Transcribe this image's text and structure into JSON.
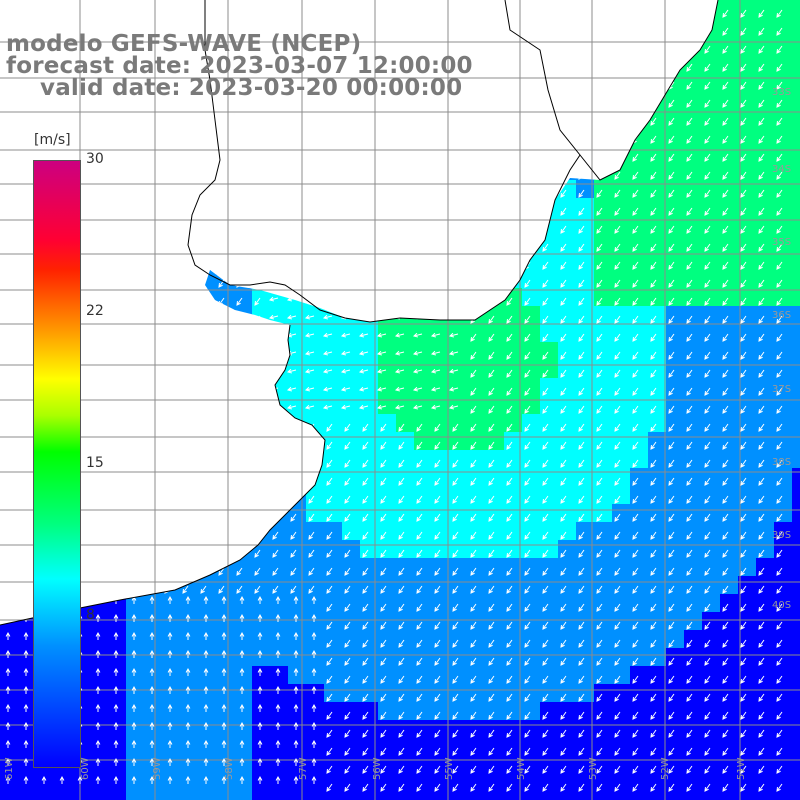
{
  "title": {
    "line1": "modelo GEFS-WAVE (NCEP)",
    "line2": "forecast date: 2023-03-07 12:00:00",
    "line3": "valid date: 2023-03-20 00:00:00"
  },
  "colorbar": {
    "unit": "[m/s]",
    "ticks": [
      "30",
      "22",
      "15",
      "8"
    ],
    "min": 0,
    "max": 30,
    "colors": [
      "#0000ff",
      "#0090ff",
      "#00ffff",
      "#00ff80",
      "#00ff00",
      "#aaff00",
      "#ffff00",
      "#ff9900",
      "#ff2200",
      "#cc0080"
    ]
  },
  "map": {
    "land_color": "#ffffff",
    "coast_color": "#000000",
    "grid_color": "#8c8c8c",
    "arrow_color": "#ffffff",
    "lat_labels": [
      "33S",
      "34S",
      "35S",
      "36S",
      "37S",
      "38S",
      "39S",
      "40S"
    ],
    "lon_labels": [
      "61W",
      "60W",
      "59W",
      "58W",
      "57W",
      "56W",
      "55W",
      "54W",
      "53W",
      "52W",
      "51W"
    ],
    "wind_field_note": ""
  }
}
